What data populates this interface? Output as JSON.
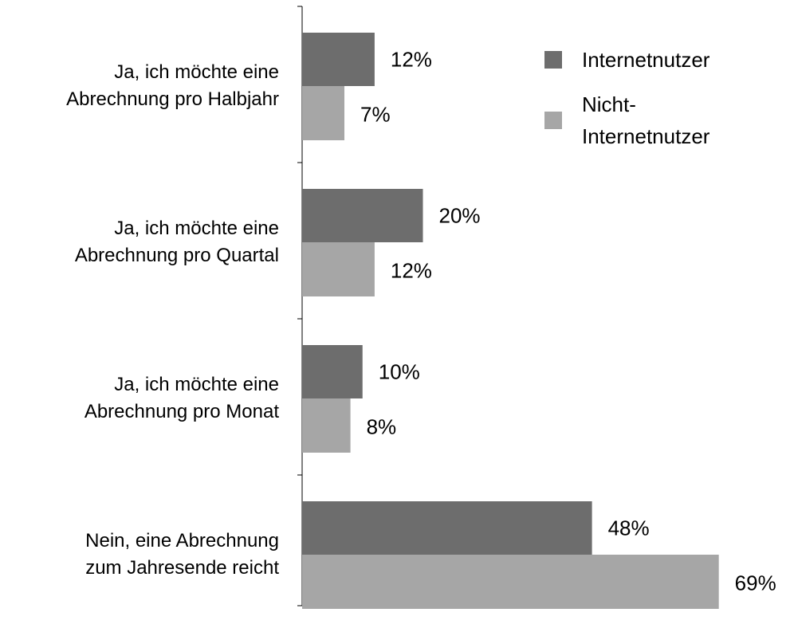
{
  "chart_data": {
    "type": "barh",
    "categories": [
      "Ja, ich möchte eine\nAbrechnung pro Halbjahr",
      "Ja, ich möchte eine\nAbrechnung pro Quartal",
      "Ja, ich möchte eine\nAbrechnung pro Monat",
      "Nein, eine Abrechnung\nzum Jahresende reicht"
    ],
    "series": [
      {
        "name": "Internetnutzer",
        "color": "#6d6d6d",
        "values": [
          12,
          20,
          10,
          48
        ],
        "value_labels": [
          "12%",
          "20%",
          "10%",
          "48%"
        ]
      },
      {
        "name": "Nicht-\nInternetnutzer",
        "color": "#a6a6a6",
        "values": [
          7,
          12,
          8,
          69
        ],
        "value_labels": [
          "7%",
          "12%",
          "8%",
          "69%"
        ]
      }
    ],
    "xlim": [
      0,
      80
    ]
  }
}
